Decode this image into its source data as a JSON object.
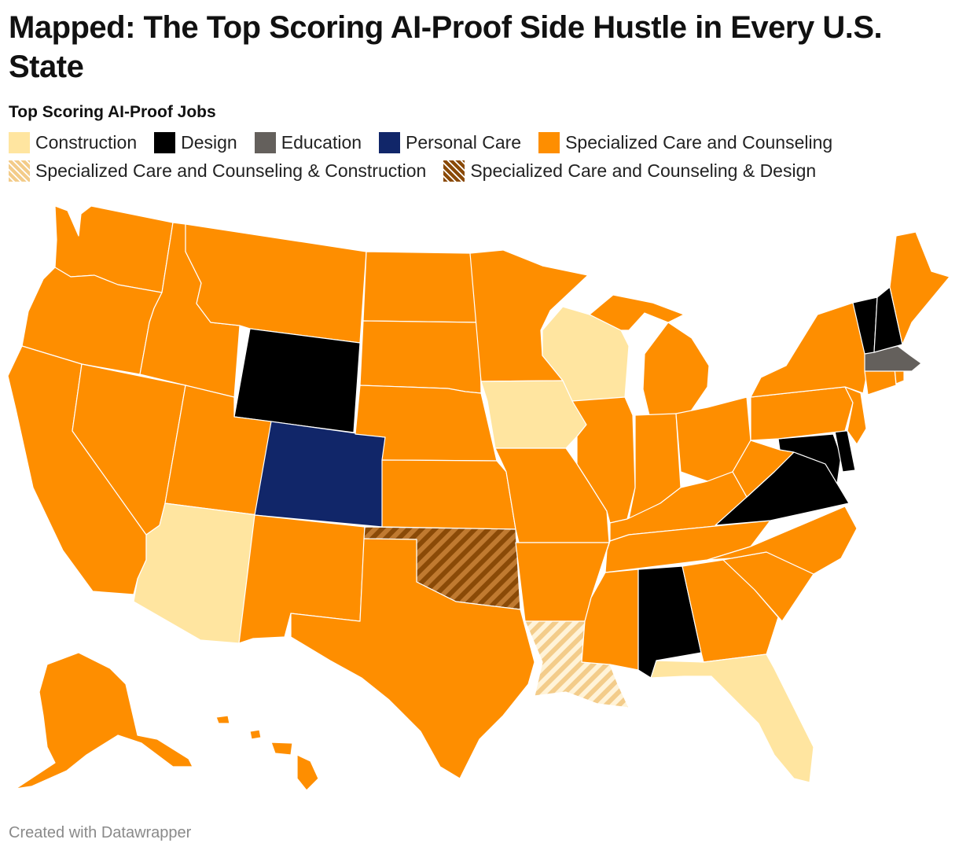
{
  "title": "Mapped: The Top Scoring AI-Proof Side Hustle in Every U.S. State",
  "legend": {
    "title": "Top Scoring AI-Proof Jobs",
    "items": [
      {
        "label": "Construction",
        "color": "#ffe5a0"
      },
      {
        "label": "Design",
        "color": "#000000"
      },
      {
        "label": "Education",
        "color": "#64605c"
      },
      {
        "label": "Personal Care",
        "color": "#112669"
      },
      {
        "label": "Specialized Care and Counseling",
        "color": "#fe8e00"
      },
      {
        "label": "Specialized Care and Counseling & Construction",
        "color": "#f3cc8a",
        "pattern": "hatch"
      },
      {
        "label": "Specialized Care and Counseling & Design",
        "color": "#8a4a07",
        "pattern": "hatch"
      }
    ]
  },
  "colors": {
    "Construction": "#ffe5a0",
    "Design": "#000000",
    "Education": "#64605c",
    "Personal Care": "#112669",
    "Specialized Care and Counseling": "#fe8e00",
    "Specialized Care and Counseling & Construction": "#f3cc8a",
    "Specialized Care and Counseling & Design": "#8a4a07",
    "border": "#ffffff"
  },
  "states": {
    "WA": "Specialized Care and Counseling",
    "OR": "Specialized Care and Counseling",
    "CA": "Specialized Care and Counseling",
    "ID": "Specialized Care and Counseling",
    "NV": "Specialized Care and Counseling",
    "MT": "Specialized Care and Counseling",
    "WY": "Design",
    "UT": "Specialized Care and Counseling",
    "AZ": "Construction",
    "CO": "Personal Care",
    "NM": "Specialized Care and Counseling",
    "ND": "Specialized Care and Counseling",
    "SD": "Specialized Care and Counseling",
    "NE": "Specialized Care and Counseling",
    "KS": "Specialized Care and Counseling",
    "OK": "Specialized Care and Counseling & Design",
    "TX": "Specialized Care and Counseling",
    "MN": "Specialized Care and Counseling",
    "IA": "Construction",
    "MO": "Specialized Care and Counseling",
    "AR": "Specialized Care and Counseling",
    "LA": "Specialized Care and Counseling & Construction",
    "WI": "Construction",
    "IL": "Specialized Care and Counseling",
    "MI": "Specialized Care and Counseling",
    "IN": "Specialized Care and Counseling",
    "OH": "Specialized Care and Counseling",
    "KY": "Specialized Care and Counseling",
    "TN": "Specialized Care and Counseling",
    "MS": "Specialized Care and Counseling",
    "AL": "Design",
    "GA": "Specialized Care and Counseling",
    "FL": "Construction",
    "SC": "Specialized Care and Counseling",
    "NC": "Specialized Care and Counseling",
    "VA": "Design",
    "WV": "Specialized Care and Counseling",
    "MD": "Design",
    "DE": "Design",
    "PA": "Specialized Care and Counseling",
    "NJ": "Specialized Care and Counseling",
    "NY": "Specialized Care and Counseling",
    "CT": "Specialized Care and Counseling",
    "RI": "Specialized Care and Counseling",
    "MA": "Education",
    "VT": "Design",
    "NH": "Design",
    "ME": "Specialized Care and Counseling",
    "AK": "Specialized Care and Counseling",
    "HI": "Specialized Care and Counseling"
  },
  "credit": "Created with Datawrapper"
}
